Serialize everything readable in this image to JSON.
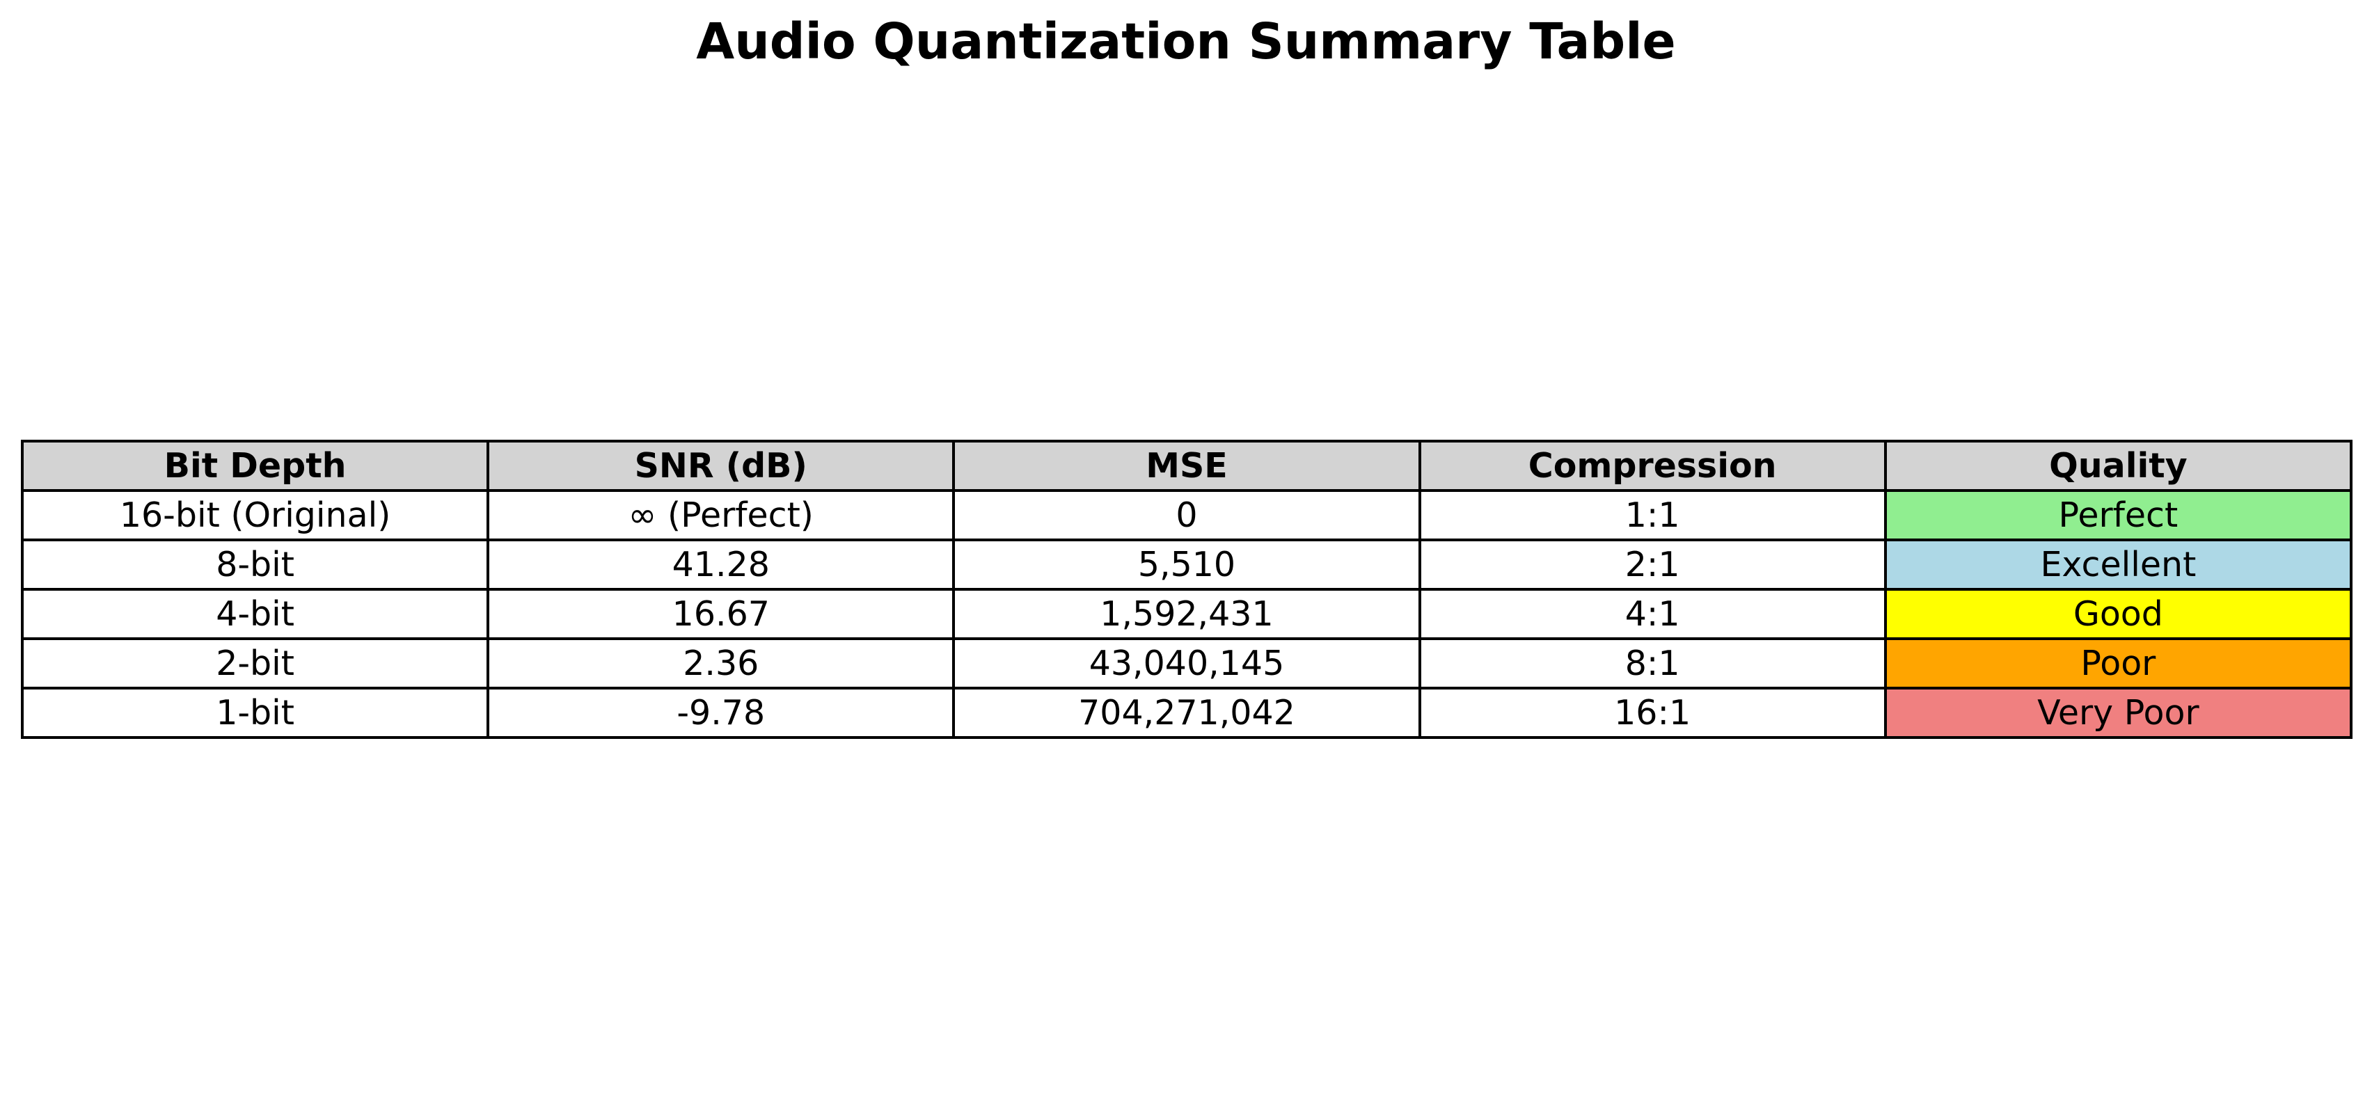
{
  "chart_data": {
    "type": "table",
    "title": "Audio Quantization Summary Table",
    "columns": [
      "Bit Depth",
      "SNR (dB)",
      "MSE",
      "Compression",
      "Quality"
    ],
    "rows": [
      [
        "16-bit (Original)",
        "∞ (Perfect)",
        "0",
        "1:1",
        "Perfect"
      ],
      [
        "8-bit",
        "41.28",
        "5,510",
        "2:1",
        "Excellent"
      ],
      [
        "4-bit",
        "16.67",
        "1,592,431",
        "4:1",
        "Good"
      ],
      [
        "2-bit",
        "2.36",
        "43,040,145",
        "8:1",
        "Poor"
      ],
      [
        "1-bit",
        "-9.78",
        "704,271,042",
        "16:1",
        "Very Poor"
      ]
    ],
    "header_color": "#d3d3d3",
    "quality_colors": [
      "#90ee90",
      "#add8e6",
      "#ffff00",
      "#ffa500",
      "#f08080"
    ]
  }
}
